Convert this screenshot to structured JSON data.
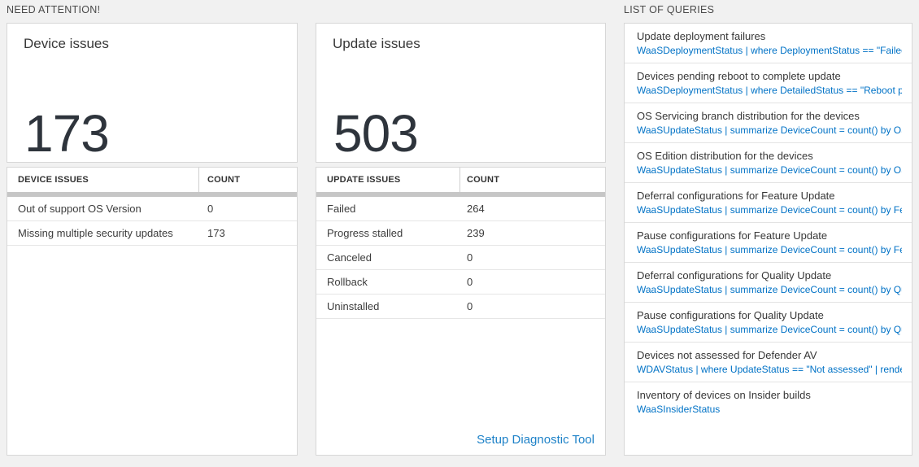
{
  "colors": {
    "page_background": "#f1f1f1",
    "card_background": "#ffffff",
    "card_border": "#d7d7d7",
    "big_number": "#2e343c",
    "query_link_blue": "#0072c6",
    "footer_link_blue": "#1e82c8",
    "scroll_track_gray": "#c6c6c6"
  },
  "need_attention": {
    "header": "NEED ATTENTION!",
    "cards": [
      {
        "title": "Device issues",
        "big_number": "173",
        "table": {
          "columns": [
            "DEVICE ISSUES",
            "COUNT"
          ],
          "rows": [
            [
              "Out of support OS Version",
              "0"
            ],
            [
              "Missing multiple security updates",
              "173"
            ]
          ]
        }
      },
      {
        "title": "Update issues",
        "big_number": "503",
        "table": {
          "columns": [
            "UPDATE ISSUES",
            "COUNT"
          ],
          "rows": [
            [
              "Failed",
              "264"
            ],
            [
              "Progress stalled",
              "239"
            ],
            [
              "Canceled",
              "0"
            ],
            [
              "Rollback",
              "0"
            ],
            [
              "Uninstalled",
              "0"
            ]
          ]
        },
        "footer_link": "Setup Diagnostic Tool"
      }
    ]
  },
  "queries": {
    "header": "LIST OF QUERIES",
    "items": [
      {
        "title": "Update deployment failures",
        "query": "WaaSDeploymentStatus | where DeploymentStatus == \"Failed\" |..."
      },
      {
        "title": "Devices pending reboot to complete update",
        "query": "WaaSDeploymentStatus | where DetailedStatus == \"Reboot pend..."
      },
      {
        "title": "OS Servicing branch distribution for the devices",
        "query": "WaaSUpdateStatus | summarize DeviceCount = count() by OSSer..."
      },
      {
        "title": "OS Edition distribution for the devices",
        "query": "WaaSUpdateStatus | summarize DeviceCount = count() by OSEdit..."
      },
      {
        "title": "Deferral configurations for Feature Update",
        "query": "WaaSUpdateStatus | summarize DeviceCount = count() by Featur..."
      },
      {
        "title": "Pause configurations for Feature Update",
        "query": "WaaSUpdateStatus | summarize DeviceCount = count() by Featur..."
      },
      {
        "title": "Deferral configurations for Quality Update",
        "query": "WaaSUpdateStatus | summarize DeviceCount = count() by Qualit..."
      },
      {
        "title": "Pause configurations for Quality Update",
        "query": "WaaSUpdateStatus | summarize DeviceCount = count() by Qualit..."
      },
      {
        "title": "Devices not assessed for Defender AV",
        "query": "WDAVStatus | where UpdateStatus == \"Not assessed\" | render ta..."
      },
      {
        "title": "Inventory of devices on Insider builds",
        "query": "WaaSInsiderStatus"
      }
    ]
  }
}
